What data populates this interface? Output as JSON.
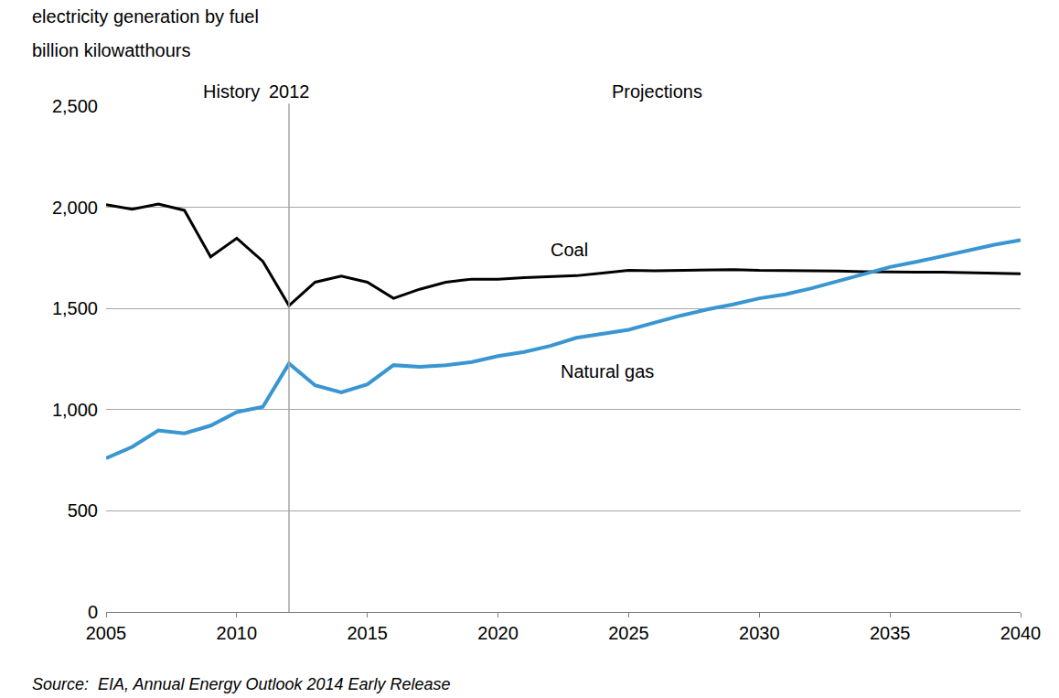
{
  "chart_data": {
    "type": "line",
    "title": "electricity generation by fuel",
    "subtitle": "billion kilowatthours",
    "source": "Source:  EIA, Annual Energy Outlook 2014 Early Release",
    "divider": {
      "x": 2012,
      "label": "2012"
    },
    "annotations": [
      {
        "text": "History"
      },
      {
        "text": "Projections"
      }
    ],
    "x": [
      2005,
      2006,
      2007,
      2008,
      2009,
      2010,
      2011,
      2012,
      2013,
      2014,
      2015,
      2016,
      2017,
      2018,
      2019,
      2020,
      2021,
      2022,
      2023,
      2024,
      2025,
      2026,
      2027,
      2028,
      2029,
      2030,
      2031,
      2032,
      2033,
      2034,
      2035,
      2036,
      2037,
      2038,
      2039,
      2040
    ],
    "series": [
      {
        "name": "Coal",
        "color": "#000000",
        "values": [
          2013,
          1990,
          2016,
          1985,
          1755,
          1847,
          1733,
          1514,
          1630,
          1660,
          1630,
          1550,
          1595,
          1630,
          1645,
          1645,
          1652,
          1658,
          1662,
          1675,
          1688,
          1686,
          1688,
          1692,
          1692,
          1688,
          1688,
          1685,
          1685,
          1682,
          1680,
          1680,
          1680,
          1678,
          1673,
          1672
        ]
      },
      {
        "name": "Natural gas",
        "color": "#3a96d2",
        "values": [
          760,
          816,
          897,
          883,
          921,
          988,
          1014,
          1228,
          1120,
          1085,
          1125,
          1220,
          1212,
          1220,
          1235,
          1265,
          1285,
          1315,
          1355,
          1375,
          1395,
          1430,
          1465,
          1495,
          1520,
          1550,
          1570,
          1600,
          1635,
          1672,
          1705,
          1730,
          1758,
          1785,
          1815,
          1838
        ]
      }
    ],
    "xlim": [
      2005,
      2040
    ],
    "xticks": [
      2005,
      2010,
      2015,
      2020,
      2025,
      2030,
      2035,
      2040
    ],
    "ylim": [
      0,
      2500
    ],
    "yticks": [
      0,
      500,
      {
        "value": 1000,
        "label": "1,000"
      },
      {
        "value": 1500,
        "label": "1,500"
      },
      {
        "value": 2000,
        "label": "2,000"
      },
      {
        "value": 2500,
        "label": "2,500"
      }
    ],
    "grid": true
  }
}
